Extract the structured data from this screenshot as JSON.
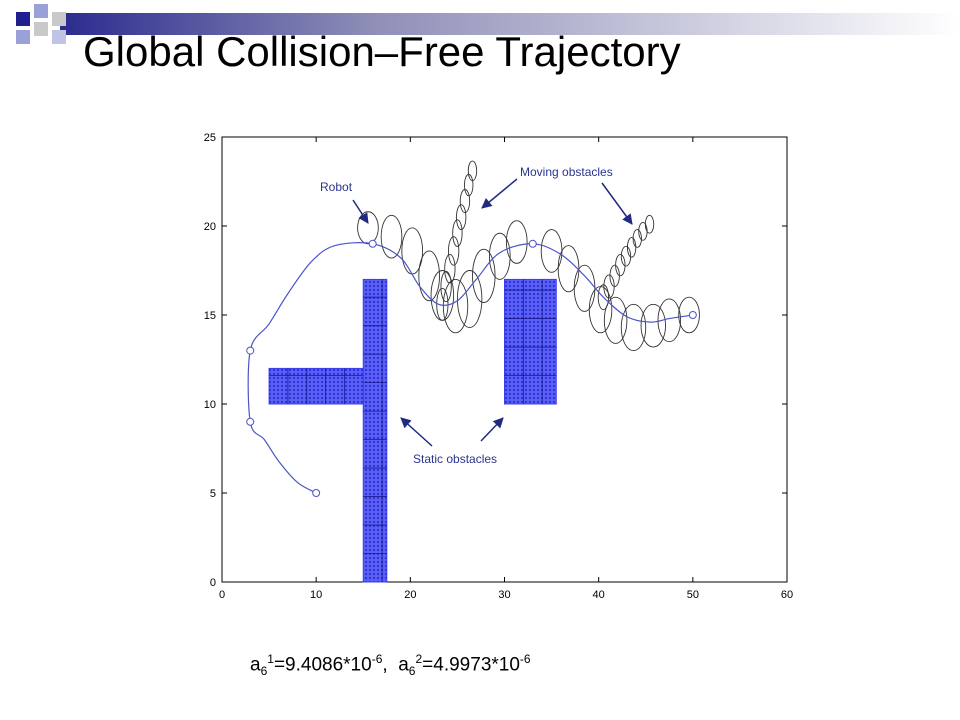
{
  "slide": {
    "title": "Global Collision–Free Trajectory",
    "accent_colors": [
      "#1f1f8f",
      "#9aa0d8",
      "#c9c9c9"
    ]
  },
  "annotations": {
    "robot": "Robot",
    "moving_obstacles": "Moving obstacles",
    "static_obstacles": "Static obstacles",
    "arrow_color": "#1f2a80"
  },
  "formula": {
    "a1_base": "a",
    "a1_sub": "6",
    "a1_sup": "1",
    "a1_value": "=9.4086*10",
    "a1_exp": "-6",
    "separator": ",",
    "a2_base": "a",
    "a2_sub": "6",
    "a2_sup": "2",
    "a2_value": "=4.9973*10",
    "a2_exp": "-6"
  },
  "chart_data": {
    "type": "line",
    "xlim": [
      0,
      60
    ],
    "ylim": [
      0,
      25
    ],
    "x_ticks": [
      "0",
      "10",
      "20",
      "30",
      "40",
      "50",
      "60"
    ],
    "y_ticks": [
      "0",
      "5",
      "10",
      "15",
      "20",
      "25"
    ],
    "grid": false,
    "trajectory_color": "#4a55c8",
    "obstacle_color": "#3a3ff0",
    "trajectory": [
      [
        10,
        5
      ],
      [
        8,
        5.6
      ],
      [
        6,
        6.8
      ],
      [
        4.5,
        8
      ],
      [
        3,
        9
      ],
      [
        3,
        13
      ],
      [
        5,
        14.5
      ],
      [
        7,
        16.2
      ],
      [
        9.5,
        18
      ],
      [
        12,
        18.9
      ],
      [
        16,
        19
      ],
      [
        19,
        18.2
      ],
      [
        21,
        16.6
      ],
      [
        23,
        15.6
      ],
      [
        25,
        15.8
      ],
      [
        27,
        17
      ],
      [
        29.5,
        18.5
      ],
      [
        33,
        19
      ],
      [
        36,
        18.4
      ],
      [
        38.5,
        17.2
      ],
      [
        40.5,
        16
      ],
      [
        43,
        14.9
      ],
      [
        45.5,
        14.6
      ],
      [
        47.5,
        14.8
      ],
      [
        50,
        15
      ]
    ],
    "waypoints": [
      [
        10,
        5
      ],
      [
        3,
        9
      ],
      [
        3,
        13
      ],
      [
        16,
        19
      ],
      [
        33,
        19
      ],
      [
        50,
        15
      ]
    ],
    "static_obstacles": [
      {
        "x": [
          15,
          17.5
        ],
        "y": [
          0,
          17
        ]
      },
      {
        "x": [
          5,
          15
        ],
        "y": [
          10,
          12
        ]
      },
      {
        "x": [
          30,
          35.5
        ],
        "y": [
          10,
          17
        ]
      }
    ],
    "robot_ellipses": [
      [
        15.5,
        19.9,
        1.1,
        0.9
      ],
      [
        18,
        19.4,
        1.1,
        1.2
      ],
      [
        20.2,
        18.6,
        1.1,
        1.3
      ],
      [
        22,
        17.2,
        1.1,
        1.4
      ],
      [
        23.4,
        16.1,
        1.2,
        1.4
      ],
      [
        24.8,
        15.5,
        1.3,
        1.5
      ],
      [
        26.3,
        15.9,
        1.3,
        1.6
      ],
      [
        27.8,
        17.2,
        1.2,
        1.5
      ],
      [
        29.5,
        18.3,
        1.1,
        1.3
      ],
      [
        31.3,
        19.1,
        1.1,
        1.2
      ],
      [
        35,
        18.6,
        1.1,
        1.2
      ],
      [
        36.8,
        17.6,
        1.1,
        1.3
      ],
      [
        38.5,
        16.5,
        1.1,
        1.3
      ],
      [
        40.2,
        15.3,
        1.2,
        1.3
      ],
      [
        41.8,
        14.7,
        1.2,
        1.3
      ],
      [
        43.7,
        14.3,
        1.3,
        1.3
      ],
      [
        45.8,
        14.4,
        1.3,
        1.2
      ],
      [
        47.5,
        14.7,
        1.2,
        1.2
      ],
      [
        49.6,
        15,
        1.1,
        1.0
      ]
    ],
    "moving_obstacle_a": [
      [
        23.4,
        15.6,
        0.6,
        0.9
      ],
      [
        23.8,
        16.6,
        0.55,
        0.85
      ],
      [
        24.2,
        17.6,
        0.55,
        0.8
      ],
      [
        24.6,
        18.6,
        0.55,
        0.8
      ],
      [
        25,
        19.6,
        0.5,
        0.75
      ],
      [
        25.4,
        20.5,
        0.5,
        0.7
      ],
      [
        25.8,
        21.4,
        0.5,
        0.65
      ],
      [
        26.2,
        22.3,
        0.45,
        0.6
      ],
      [
        26.6,
        23.1,
        0.45,
        0.55
      ]
    ],
    "moving_obstacle_b": [
      [
        40.5,
        16,
        0.55,
        0.7
      ],
      [
        41.1,
        16.6,
        0.55,
        0.65
      ],
      [
        41.7,
        17.2,
        0.5,
        0.6
      ],
      [
        42.3,
        17.8,
        0.5,
        0.6
      ],
      [
        42.9,
        18.3,
        0.5,
        0.55
      ],
      [
        43.5,
        18.8,
        0.45,
        0.55
      ],
      [
        44.1,
        19.3,
        0.45,
        0.5
      ],
      [
        44.7,
        19.7,
        0.45,
        0.5
      ],
      [
        45.4,
        20.1,
        0.45,
        0.5
      ]
    ]
  }
}
